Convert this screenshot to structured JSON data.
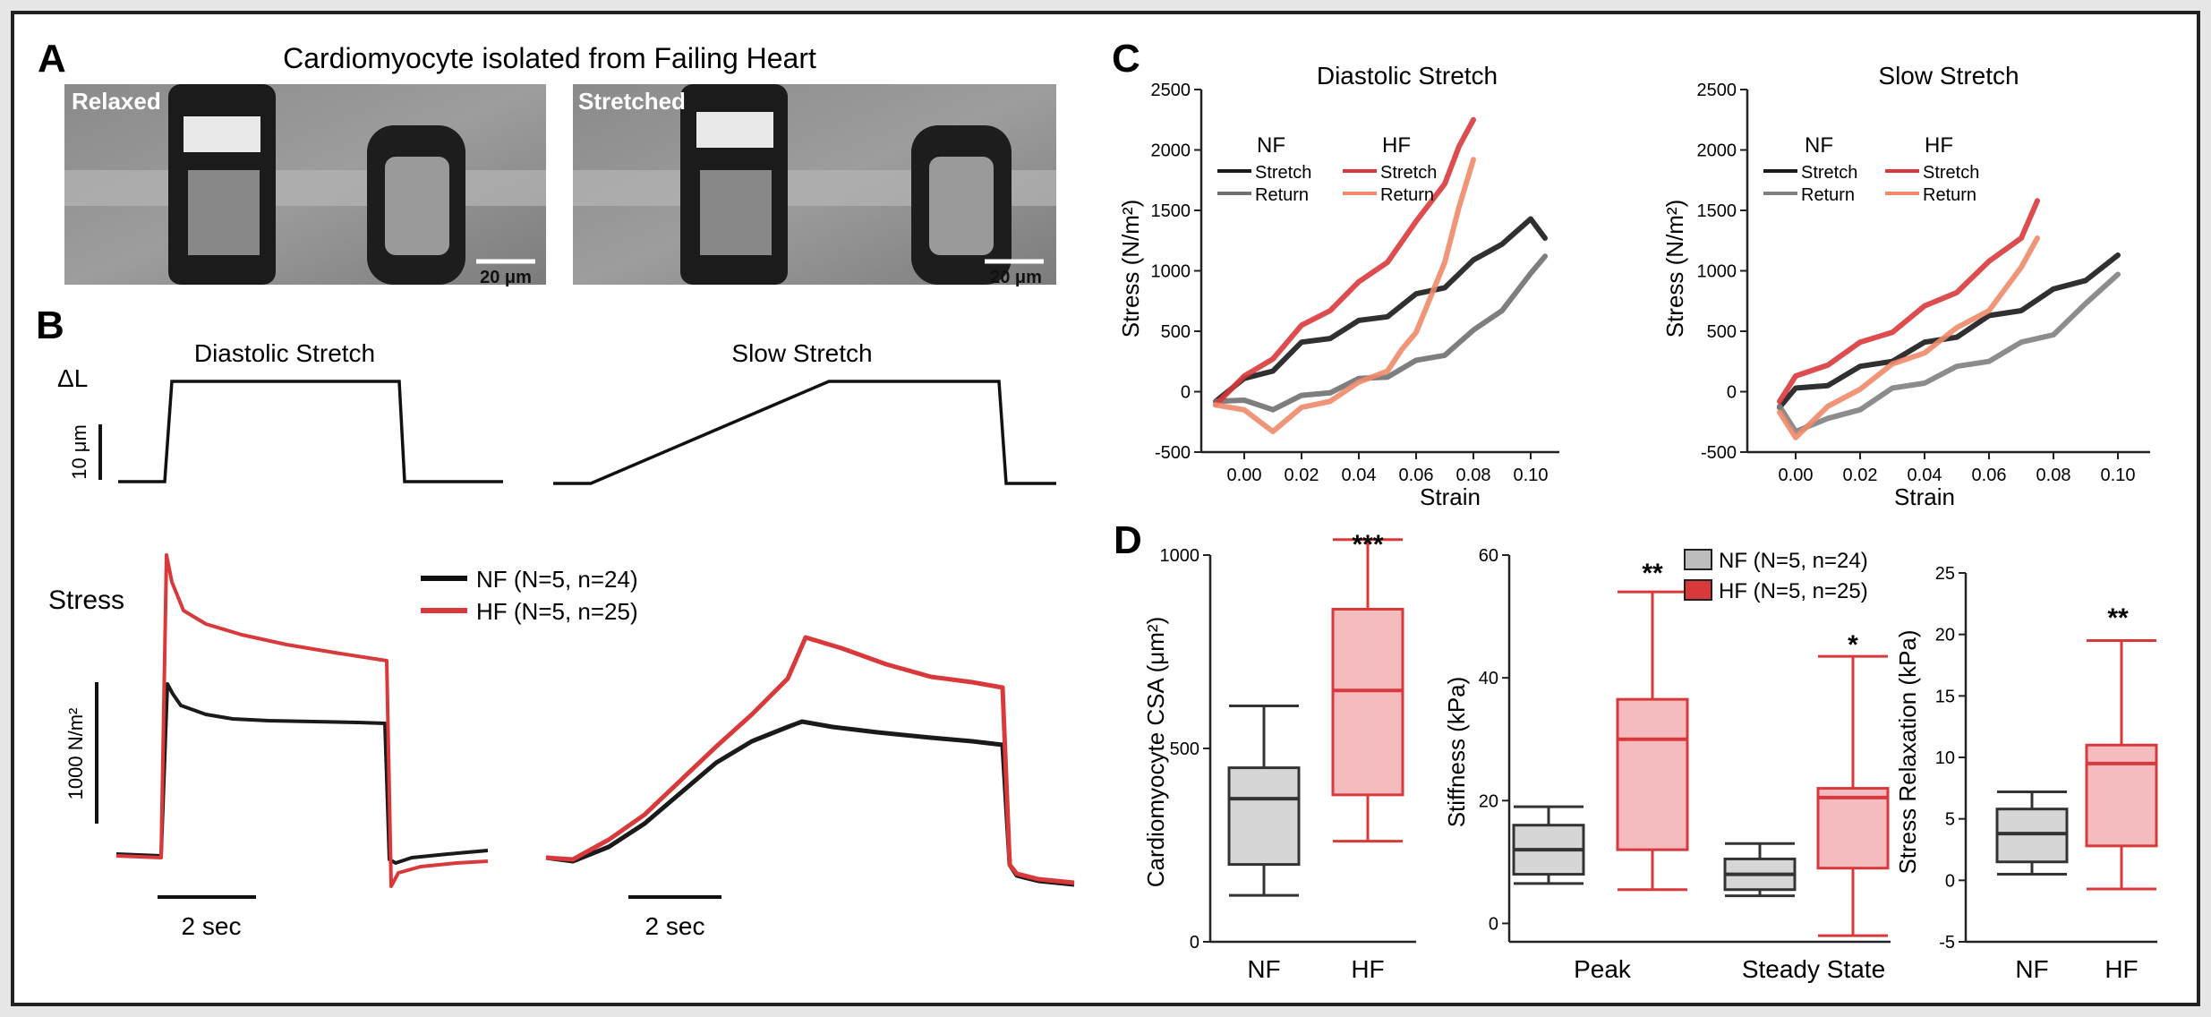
{
  "panel_labels": {
    "A": "A",
    "B": "B",
    "C": "C",
    "D": "D"
  },
  "panelA": {
    "title": "Cardiomyocyte isolated from Failing Heart",
    "images": [
      {
        "label": "Relaxed",
        "scale_bar": "20 μm"
      },
      {
        "label": "Stretched",
        "scale_bar": "20 μm"
      }
    ]
  },
  "panelB": {
    "protocol_titles": [
      "Diastolic Stretch",
      "Slow Stretch"
    ],
    "length_label": "ΔL",
    "length_scale": "10 μm",
    "stress_label": "Stress",
    "stress_scale": "1000 N/m²",
    "time_scale": "2 sec",
    "legend": [
      {
        "name": "NF  (N=5, n=24)",
        "color": "#111111"
      },
      {
        "name": "HF  (N=5, n=25)",
        "color": "#d9393b"
      }
    ]
  },
  "chart_data": [
    {
      "type": "line",
      "title": "Diastolic Stretch",
      "xlabel": "Strain",
      "ylabel": "Stress (N/m²)",
      "xlim": [
        -0.015,
        0.11
      ],
      "ylim": [
        -500,
        2500
      ],
      "xticks": [
        "0.00",
        "0.02",
        "0.04",
        "0.06",
        "0.08",
        "0.10"
      ],
      "yticks": [
        "-500",
        "0",
        "500",
        "1000",
        "1500",
        "2000",
        "2500"
      ],
      "legend_groups": [
        "NF",
        "HF"
      ],
      "legend_items": [
        "Stretch",
        "Return"
      ],
      "series": [
        {
          "name": "NF Stretch",
          "color": "#1a1a1a",
          "x": [
            -0.01,
            0.0,
            0.01,
            0.02,
            0.03,
            0.04,
            0.05,
            0.06,
            0.07,
            0.08,
            0.09,
            0.1,
            0.105
          ],
          "y": [
            -50,
            80,
            200,
            380,
            470,
            560,
            650,
            780,
            890,
            1060,
            1250,
            1400,
            1300
          ]
        },
        {
          "name": "NF Return",
          "color": "#707070",
          "x": [
            0.105,
            0.1,
            0.09,
            0.08,
            0.07,
            0.06,
            0.05,
            0.04,
            0.03,
            0.02,
            0.01,
            0.0,
            -0.01
          ],
          "y": [
            1150,
            950,
            700,
            480,
            330,
            230,
            150,
            80,
            20,
            -60,
            -120,
            -100,
            -50
          ]
        },
        {
          "name": "HF Stretch",
          "color": "#d9393b",
          "x": [
            -0.01,
            0.0,
            0.01,
            0.02,
            0.03,
            0.04,
            0.05,
            0.06,
            0.07,
            0.075,
            0.08
          ],
          "y": [
            -80,
            100,
            300,
            520,
            700,
            880,
            1100,
            1380,
            1750,
            2000,
            2280
          ]
        },
        {
          "name": "HF Return",
          "color": "#f08a6a",
          "x": [
            0.08,
            0.075,
            0.07,
            0.065,
            0.06,
            0.055,
            0.05,
            0.04,
            0.03,
            0.02,
            0.01,
            0.0,
            -0.01
          ],
          "y": [
            1950,
            1500,
            1100,
            750,
            520,
            320,
            200,
            50,
            -50,
            -160,
            -300,
            -180,
            -80
          ]
        }
      ]
    },
    {
      "type": "line",
      "title": "Slow Stretch",
      "xlabel": "Strain",
      "ylabel": "Stress (N/m²)",
      "xlim": [
        -0.015,
        0.11
      ],
      "ylim": [
        -500,
        2500
      ],
      "xticks": [
        "0.00",
        "0.02",
        "0.04",
        "0.06",
        "0.08",
        "0.10"
      ],
      "yticks": [
        "-500",
        "0",
        "500",
        "1000",
        "1500",
        "2000",
        "2500"
      ],
      "legend_groups": [
        "NF",
        "HF"
      ],
      "legend_items": [
        "Stretch",
        "Return"
      ],
      "series": [
        {
          "name": "NF Stretch",
          "color": "#1a1a1a",
          "x": [
            -0.005,
            0.0,
            0.01,
            0.02,
            0.03,
            0.04,
            0.05,
            0.06,
            0.07,
            0.08,
            0.09,
            0.1
          ],
          "y": [
            -100,
            0,
            80,
            180,
            280,
            380,
            480,
            600,
            700,
            820,
            950,
            1100
          ]
        },
        {
          "name": "NF Return",
          "color": "#808080",
          "x": [
            0.1,
            0.09,
            0.08,
            0.07,
            0.06,
            0.05,
            0.04,
            0.03,
            0.02,
            0.01,
            0.0,
            -0.005
          ],
          "y": [
            1000,
            700,
            500,
            380,
            280,
            180,
            100,
            0,
            -120,
            -250,
            -300,
            -150
          ]
        },
        {
          "name": "HF Stretch",
          "color": "#d9393b",
          "x": [
            -0.005,
            0.0,
            0.01,
            0.02,
            0.03,
            0.04,
            0.05,
            0.06,
            0.07,
            0.075
          ],
          "y": [
            -50,
            100,
            250,
            380,
            520,
            680,
            850,
            1050,
            1300,
            1550
          ]
        },
        {
          "name": "HF Return",
          "color": "#f08a6a",
          "x": [
            0.075,
            0.07,
            0.06,
            0.05,
            0.04,
            0.03,
            0.02,
            0.01,
            0.0,
            -0.005
          ],
          "y": [
            1300,
            1000,
            700,
            500,
            350,
            200,
            50,
            -150,
            -350,
            -200
          ]
        }
      ]
    },
    {
      "type": "box",
      "ylabel": "Cardiomyocyte CSA (μm²)",
      "ylim": [
        0,
        1000
      ],
      "yticks": [
        "0",
        "500",
        "1000"
      ],
      "categories": [
        "NF",
        "HF"
      ],
      "boxes": [
        {
          "group": "NF",
          "min": 120,
          "q1": 200,
          "median": 370,
          "q3": 450,
          "max": 610
        },
        {
          "group": "HF",
          "min": 260,
          "q1": 380,
          "median": 650,
          "q3": 860,
          "max": 1040
        }
      ],
      "significance": [
        {
          "group": "HF",
          "stars": "***"
        }
      ]
    },
    {
      "type": "box",
      "ylabel": "Stiffness (kPa)",
      "ylim": [
        -3,
        60
      ],
      "yticks": [
        "0",
        "20",
        "40",
        "60"
      ],
      "categories": [
        "Peak",
        "Steady State"
      ],
      "legend": [
        "NF (N=5, n=24)",
        "HF (N=5, n=25)"
      ],
      "boxes": [
        {
          "category": "Peak",
          "group": "NF",
          "min": 6.5,
          "q1": 8,
          "median": 12,
          "q3": 16,
          "max": 19
        },
        {
          "category": "Peak",
          "group": "HF",
          "min": 5.5,
          "q1": 12,
          "median": 30,
          "q3": 36.5,
          "max": 54
        },
        {
          "category": "Steady State",
          "group": "NF",
          "min": 4.5,
          "q1": 5.5,
          "median": 8,
          "q3": 10.5,
          "max": 13
        },
        {
          "category": "Steady State",
          "group": "HF",
          "min": -2,
          "q1": 9,
          "median": 20.5,
          "q3": 22,
          "max": 43.5
        }
      ],
      "significance": [
        {
          "category": "Peak",
          "stars": "**"
        },
        {
          "category": "Steady State",
          "stars": "*"
        }
      ]
    },
    {
      "type": "box",
      "ylabel": "Stress Relaxation (kPa)",
      "ylim": [
        -5,
        25
      ],
      "yticks": [
        "-5",
        "0",
        "5",
        "10",
        "15",
        "20",
        "25"
      ],
      "categories": [
        "NF",
        "HF"
      ],
      "boxes": [
        {
          "group": "NF",
          "min": 0.5,
          "q1": 1.5,
          "median": 3.8,
          "q3": 5.8,
          "max": 7.2
        },
        {
          "group": "HF",
          "min": -0.7,
          "q1": 2.8,
          "median": 9.5,
          "q3": 11,
          "max": 19.5
        }
      ],
      "significance": [
        {
          "group": "HF",
          "stars": "**"
        }
      ]
    }
  ]
}
